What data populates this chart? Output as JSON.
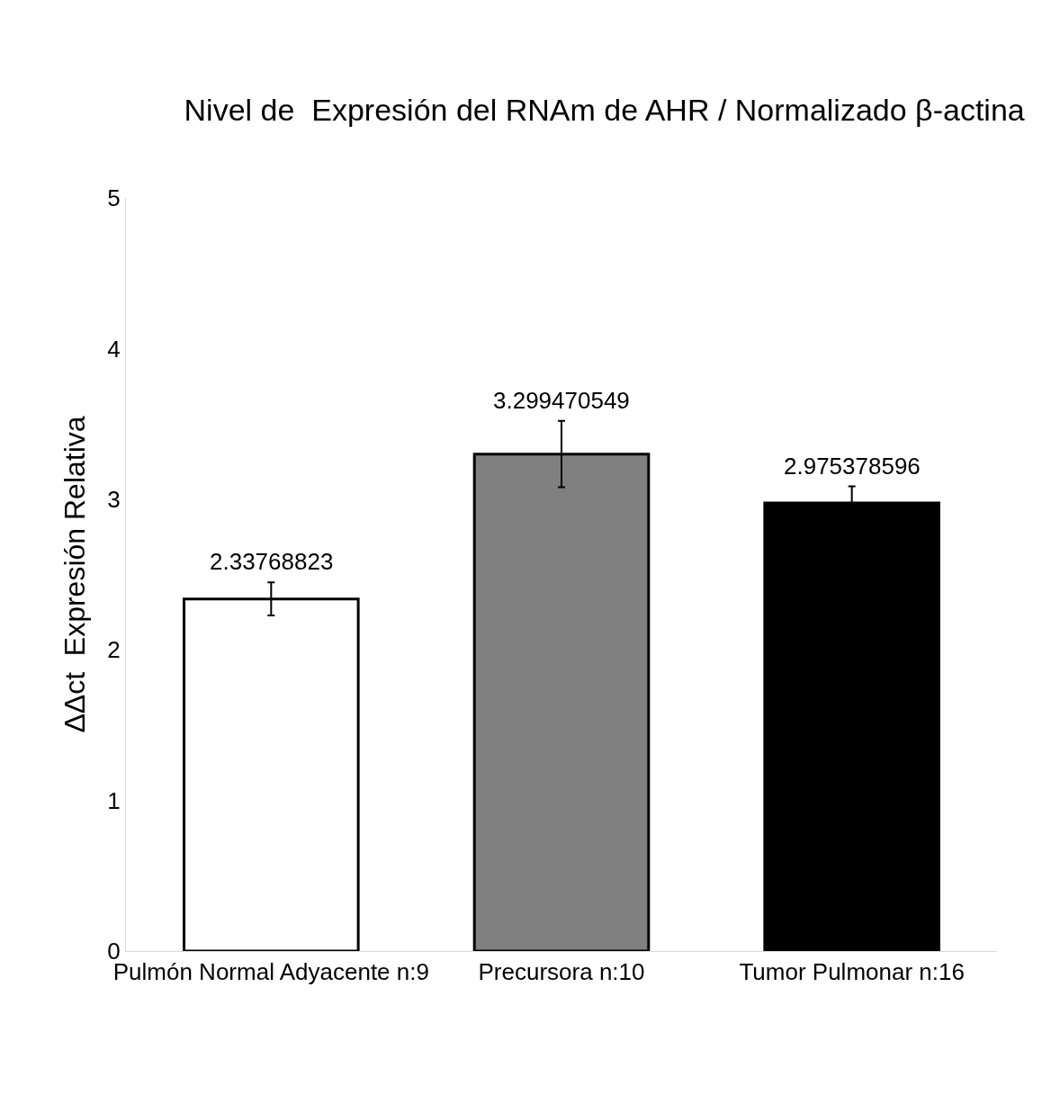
{
  "chart_data": {
    "type": "bar",
    "title": "Nivel de  Expresión del RNAm de AHR / Normalizado β-actina",
    "ylabel": "ΔΔct  Expresión Relativa",
    "categories": [
      "Pulmón Normal Adyacente n:9",
      "Precursora n:10",
      "Tumor Pulmonar n:16"
    ],
    "values": [
      2.33768823,
      3.299470549,
      2.975378596
    ],
    "colors": [
      "#ffffff",
      "#808080",
      "#000000"
    ],
    "errors": [
      0.11,
      0.22,
      0.11
    ],
    "value_labels": [
      "2.33768823",
      "3.299470549",
      "2.975378596"
    ],
    "ylim": [
      0,
      5
    ],
    "yticks": [
      0,
      1,
      2,
      3,
      4,
      5
    ]
  }
}
